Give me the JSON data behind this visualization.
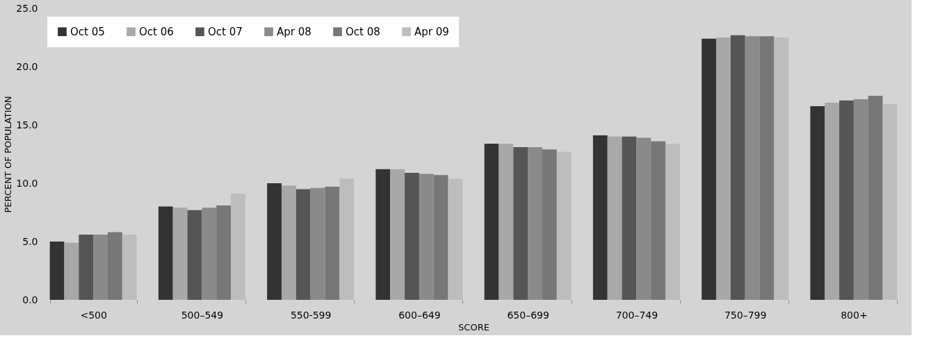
{
  "chart_data": {
    "type": "bar",
    "xlabel": "SCORE",
    "ylabel": "PERCENT OF POPULATION",
    "categories": [
      "<500",
      "500–549",
      "550-599",
      "600–649",
      "650–699",
      "700–749",
      "750–799",
      "800+"
    ],
    "series": [
      {
        "name": "Oct 05",
        "color": "#333333",
        "values": [
          5.0,
          8.0,
          10.0,
          11.2,
          13.4,
          14.1,
          22.4,
          16.6
        ]
      },
      {
        "name": "Oct 06",
        "color": "#a8a8a8",
        "values": [
          4.9,
          7.9,
          9.8,
          11.2,
          13.4,
          14.0,
          22.5,
          16.9
        ]
      },
      {
        "name": "Oct 07",
        "color": "#555555",
        "values": [
          5.6,
          7.7,
          9.5,
          10.9,
          13.1,
          14.0,
          22.7,
          17.1
        ]
      },
      {
        "name": "Apr 08",
        "color": "#8a8a8a",
        "values": [
          5.6,
          7.9,
          9.6,
          10.8,
          13.1,
          13.9,
          22.6,
          17.2
        ]
      },
      {
        "name": "Oct 08",
        "color": "#777777",
        "values": [
          5.8,
          8.1,
          9.7,
          10.7,
          12.9,
          13.6,
          22.6,
          17.5
        ]
      },
      {
        "name": "Apr 09",
        "color": "#bdbdbd",
        "values": [
          5.6,
          9.1,
          10.4,
          10.4,
          12.7,
          13.4,
          22.5,
          16.8
        ]
      }
    ],
    "ylim": [
      0,
      25
    ],
    "yticks": [
      {
        "value": 0,
        "label": "0.0"
      },
      {
        "value": 5,
        "label": "5.0"
      },
      {
        "value": 10,
        "label": "10.0"
      },
      {
        "value": 15,
        "label": "15.0"
      },
      {
        "value": 20,
        "label": "20.0"
      },
      {
        "value": 25,
        "label": "25.0"
      }
    ],
    "grid": false,
    "legend": "top left"
  }
}
